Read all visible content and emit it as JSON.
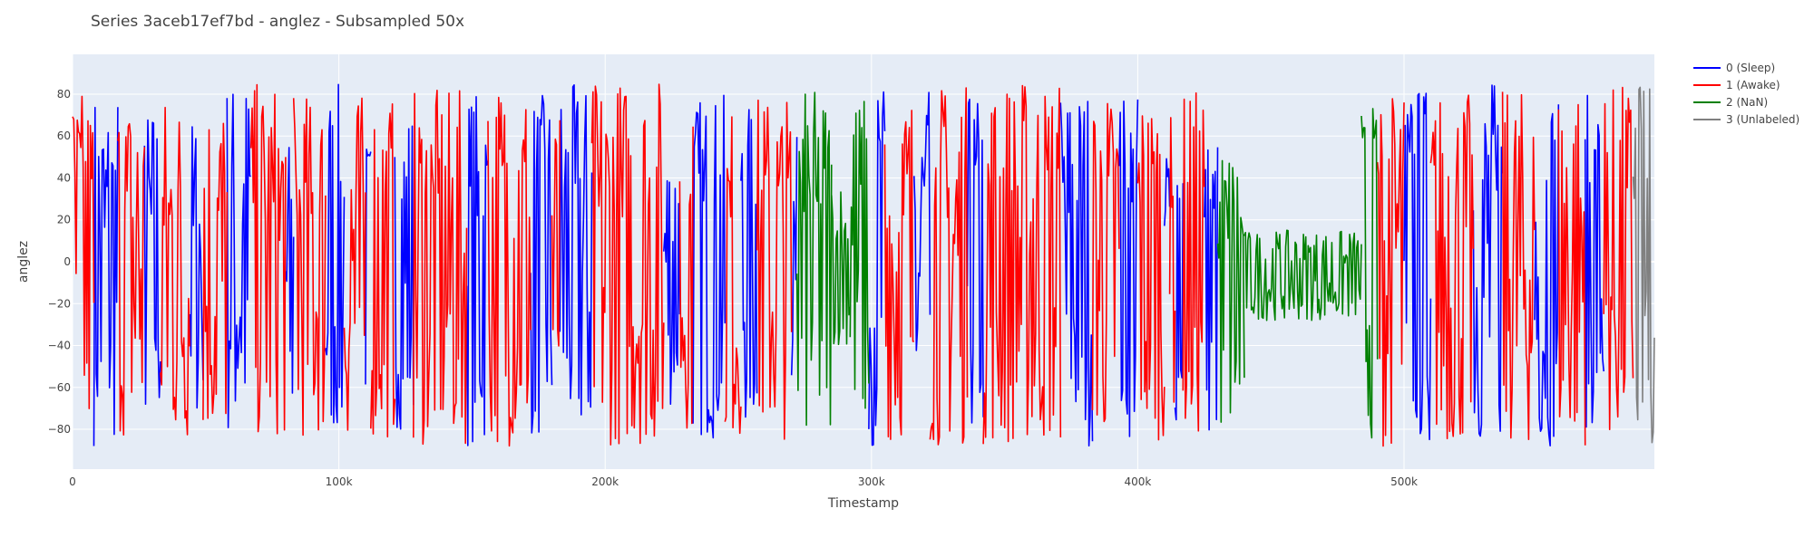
{
  "chart_data": {
    "type": "line",
    "title": "Series 3aceb17ef7bd - anglez - Subsampled 50x",
    "xlabel": "Timestamp",
    "ylabel": "anglez",
    "xlim": [
      0,
      594000
    ],
    "ylim": [
      -99,
      99
    ],
    "grid": true,
    "legend_position": "top-right",
    "x_ticks": [
      {
        "value": 0,
        "label": "0"
      },
      {
        "value": 100000,
        "label": "100k"
      },
      {
        "value": 200000,
        "label": "200k"
      },
      {
        "value": 300000,
        "label": "300k"
      },
      {
        "value": 400000,
        "label": "400k"
      },
      {
        "value": 500000,
        "label": "500k"
      }
    ],
    "y_ticks": [
      {
        "value": 80,
        "label": "80"
      },
      {
        "value": 60,
        "label": "60"
      },
      {
        "value": 40,
        "label": "40"
      },
      {
        "value": 20,
        "label": "20"
      },
      {
        "value": 0,
        "label": "0"
      },
      {
        "value": -20,
        "label": "−20"
      },
      {
        "value": -40,
        "label": "−40"
      },
      {
        "value": -60,
        "label": "−60"
      },
      {
        "value": -80,
        "label": "−80"
      }
    ],
    "series": [
      {
        "name": "0 (Sleep)",
        "color": "#0000ff",
        "segments": [
          {
            "x_start": 8000,
            "x_end": 17000,
            "y_min": -88,
            "y_max": 82
          },
          {
            "x_start": 27000,
            "x_end": 33000,
            "y_min": -80,
            "y_max": 75
          },
          {
            "x_start": 44000,
            "x_end": 49000,
            "y_min": -75,
            "y_max": 70
          },
          {
            "x_start": 58000,
            "x_end": 67000,
            "y_min": -85,
            "y_max": 88
          },
          {
            "x_start": 80000,
            "x_end": 83000,
            "y_min": -88,
            "y_max": 60
          },
          {
            "x_start": 95000,
            "x_end": 102000,
            "y_min": -85,
            "y_max": 85
          },
          {
            "x_start": 110000,
            "x_end": 112000,
            "y_min": -70,
            "y_max": 60
          },
          {
            "x_start": 121000,
            "x_end": 128000,
            "y_min": -80,
            "y_max": 75
          },
          {
            "x_start": 148000,
            "x_end": 156000,
            "y_min": -88,
            "y_max": 82
          },
          {
            "x_start": 172000,
            "x_end": 180000,
            "y_min": -85,
            "y_max": 80
          },
          {
            "x_start": 183000,
            "x_end": 195000,
            "y_min": -88,
            "y_max": 85
          },
          {
            "x_start": 222000,
            "x_end": 228000,
            "y_min": -70,
            "y_max": 60
          },
          {
            "x_start": 233000,
            "x_end": 245000,
            "y_min": -85,
            "y_max": 80
          },
          {
            "x_start": 251000,
            "x_end": 257000,
            "y_min": -80,
            "y_max": 75
          },
          {
            "x_start": 270000,
            "x_end": 272000,
            "y_min": -60,
            "y_max": 60
          },
          {
            "x_start": 299000,
            "x_end": 305000,
            "y_min": -88,
            "y_max": 85
          },
          {
            "x_start": 316000,
            "x_end": 322000,
            "y_min": -85,
            "y_max": 82
          },
          {
            "x_start": 336000,
            "x_end": 342000,
            "y_min": -85,
            "y_max": 80
          },
          {
            "x_start": 371000,
            "x_end": 383000,
            "y_min": -88,
            "y_max": 85
          },
          {
            "x_start": 393000,
            "x_end": 400000,
            "y_min": -85,
            "y_max": 82
          },
          {
            "x_start": 410000,
            "x_end": 412000,
            "y_min": -70,
            "y_max": 70
          },
          {
            "x_start": 414000,
            "x_end": 417000,
            "y_min": -80,
            "y_max": 85
          },
          {
            "x_start": 425000,
            "x_end": 430000,
            "y_min": -85,
            "y_max": 62
          },
          {
            "x_start": 500000,
            "x_end": 510000,
            "y_min": -88,
            "y_max": 85
          },
          {
            "x_start": 526000,
            "x_end": 537000,
            "y_min": -88,
            "y_max": 88
          },
          {
            "x_start": 549000,
            "x_end": 558000,
            "y_min": -88,
            "y_max": 85
          },
          {
            "x_start": 568000,
            "x_end": 575000,
            "y_min": -80,
            "y_max": 80
          }
        ]
      },
      {
        "name": "1 (Awake)",
        "color": "#ff0000",
        "segments": [
          {
            "x_start": 0,
            "x_end": 8000,
            "y_min": -88,
            "y_max": 82
          },
          {
            "x_start": 17000,
            "x_end": 27000,
            "y_min": -85,
            "y_max": 80
          },
          {
            "x_start": 33000,
            "x_end": 44000,
            "y_min": -88,
            "y_max": 80
          },
          {
            "x_start": 49000,
            "x_end": 58000,
            "y_min": -85,
            "y_max": 80
          },
          {
            "x_start": 67000,
            "x_end": 80000,
            "y_min": -85,
            "y_max": 85
          },
          {
            "x_start": 83000,
            "x_end": 95000,
            "y_min": -85,
            "y_max": 80
          },
          {
            "x_start": 102000,
            "x_end": 110000,
            "y_min": -88,
            "y_max": 80
          },
          {
            "x_start": 112000,
            "x_end": 121000,
            "y_min": -85,
            "y_max": 80
          },
          {
            "x_start": 128000,
            "x_end": 148000,
            "y_min": -88,
            "y_max": 82
          },
          {
            "x_start": 156000,
            "x_end": 172000,
            "y_min": -88,
            "y_max": 88
          },
          {
            "x_start": 180000,
            "x_end": 183000,
            "y_min": -80,
            "y_max": 70
          },
          {
            "x_start": 195000,
            "x_end": 222000,
            "y_min": -88,
            "y_max": 88
          },
          {
            "x_start": 228000,
            "x_end": 233000,
            "y_min": -80,
            "y_max": 70
          },
          {
            "x_start": 245000,
            "x_end": 251000,
            "y_min": -85,
            "y_max": 75
          },
          {
            "x_start": 257000,
            "x_end": 270000,
            "y_min": -85,
            "y_max": 80
          },
          {
            "x_start": 305000,
            "x_end": 316000,
            "y_min": -85,
            "y_max": 82
          },
          {
            "x_start": 322000,
            "x_end": 336000,
            "y_min": -88,
            "y_max": 85
          },
          {
            "x_start": 342000,
            "x_end": 371000,
            "y_min": -88,
            "y_max": 88
          },
          {
            "x_start": 383000,
            "x_end": 393000,
            "y_min": -85,
            "y_max": 82
          },
          {
            "x_start": 400000,
            "x_end": 410000,
            "y_min": -85,
            "y_max": 82
          },
          {
            "x_start": 412000,
            "x_end": 414000,
            "y_min": -70,
            "y_max": 70
          },
          {
            "x_start": 417000,
            "x_end": 425000,
            "y_min": -85,
            "y_max": 82
          },
          {
            "x_start": 490000,
            "x_end": 500000,
            "y_min": -88,
            "y_max": 82
          },
          {
            "x_start": 510000,
            "x_end": 526000,
            "y_min": -88,
            "y_max": 82
          },
          {
            "x_start": 537000,
            "x_end": 549000,
            "y_min": -88,
            "y_max": 82
          },
          {
            "x_start": 558000,
            "x_end": 568000,
            "y_min": -88,
            "y_max": 85
          },
          {
            "x_start": 575000,
            "x_end": 586000,
            "y_min": -85,
            "y_max": 85
          }
        ]
      },
      {
        "name": "2 (NaN)",
        "color": "#008000",
        "segments": [
          {
            "x_start": 272000,
            "x_end": 285000,
            "y_min": -85,
            "y_max": 82
          },
          {
            "x_start": 285000,
            "x_end": 292000,
            "y_min": -40,
            "y_max": 40
          },
          {
            "x_start": 292000,
            "x_end": 299000,
            "y_min": -80,
            "y_max": 80
          },
          {
            "x_start": 430000,
            "x_end": 440000,
            "y_min": -85,
            "y_max": 58
          },
          {
            "x_start": 440000,
            "x_end": 484000,
            "y_min": -28,
            "y_max": 15
          },
          {
            "x_start": 484000,
            "x_end": 490000,
            "y_min": -85,
            "y_max": 75
          }
        ]
      },
      {
        "name": "3 (Unlabeled)",
        "color": "#808080",
        "segments": [
          {
            "x_start": 586000,
            "x_end": 594000,
            "y_min": -88,
            "y_max": 85
          }
        ]
      }
    ]
  }
}
